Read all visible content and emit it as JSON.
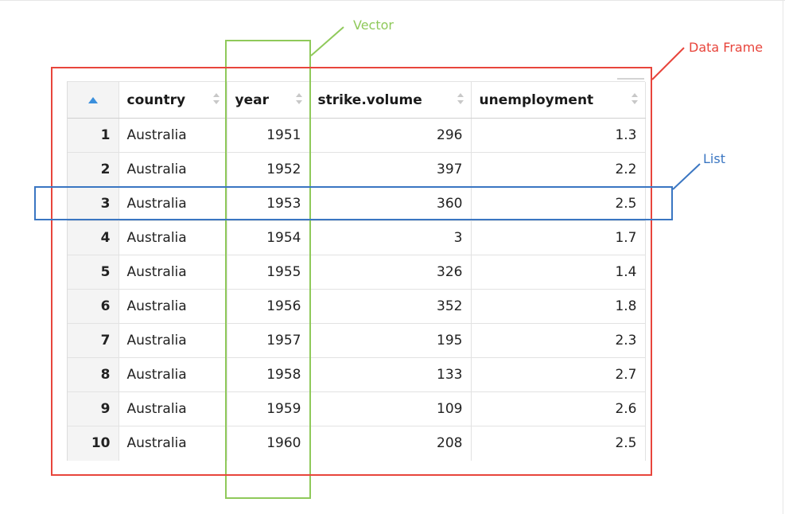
{
  "annotations": {
    "vector": {
      "label": "Vector",
      "color": "#8fc95a"
    },
    "data_frame": {
      "label": "Data Frame",
      "color": "#e8453c"
    },
    "list": {
      "label": "List",
      "color": "#3a76c2"
    }
  },
  "table": {
    "columns": [
      "country",
      "year",
      "strike.volume",
      "unemployment"
    ],
    "sorted_column": "index",
    "sort_direction": "ascending",
    "rows": [
      {
        "index": "1",
        "country": "Australia",
        "year": "1951",
        "strike_volume": "296",
        "unemployment": "1.3"
      },
      {
        "index": "2",
        "country": "Australia",
        "year": "1952",
        "strike_volume": "397",
        "unemployment": "2.2"
      },
      {
        "index": "3",
        "country": "Australia",
        "year": "1953",
        "strike_volume": "360",
        "unemployment": "2.5"
      },
      {
        "index": "4",
        "country": "Australia",
        "year": "1954",
        "strike_volume": "3",
        "unemployment": "1.7"
      },
      {
        "index": "5",
        "country": "Australia",
        "year": "1955",
        "strike_volume": "326",
        "unemployment": "1.4"
      },
      {
        "index": "6",
        "country": "Australia",
        "year": "1956",
        "strike_volume": "352",
        "unemployment": "1.8"
      },
      {
        "index": "7",
        "country": "Australia",
        "year": "1957",
        "strike_volume": "195",
        "unemployment": "2.3"
      },
      {
        "index": "8",
        "country": "Australia",
        "year": "1958",
        "strike_volume": "133",
        "unemployment": "2.7"
      },
      {
        "index": "9",
        "country": "Australia",
        "year": "1959",
        "strike_volume": "109",
        "unemployment": "2.6"
      },
      {
        "index": "10",
        "country": "Australia",
        "year": "1960",
        "strike_volume": "208",
        "unemployment": "2.5"
      }
    ]
  },
  "icons": {
    "index_sort": "sort-ascending-icon",
    "column_sort": "sort-unsorted-icon"
  },
  "colors": {
    "sort_active": "#3a8fdc",
    "sort_inactive": "#c8c8c8",
    "index_background": "#f4f4f4"
  }
}
